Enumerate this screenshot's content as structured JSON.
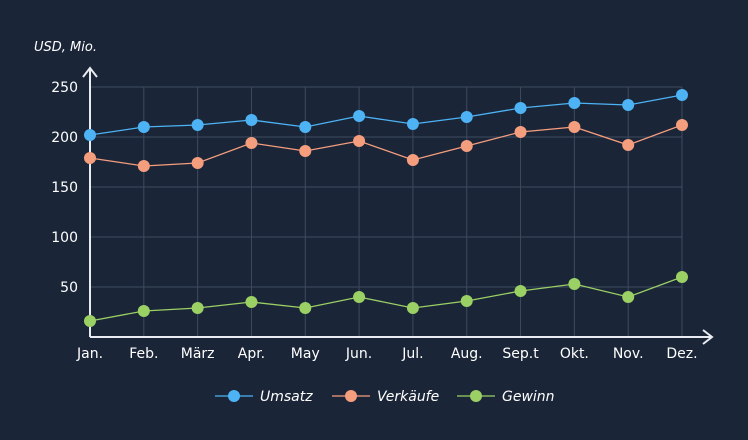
{
  "chart_data": {
    "type": "line",
    "title": "",
    "ylabel": "USD, Mio.",
    "xlabel": "",
    "categories": [
      "Jan.",
      "Feb.",
      "März",
      "Apr.",
      "May",
      "Jun.",
      "Jul.",
      "Aug.",
      "Sep.t",
      "Okt.",
      "Nov.",
      "Dez."
    ],
    "ylim": [
      0,
      250
    ],
    "yticks": [
      50,
      100,
      150,
      200,
      250
    ],
    "grid": true,
    "legend_position": "bottom",
    "series": [
      {
        "name": "Umsatz",
        "color": "#4db3f5",
        "values": [
          202,
          210,
          212,
          217,
          210,
          221,
          213,
          220,
          229,
          234,
          232,
          242
        ]
      },
      {
        "name": "Verkäufe",
        "color": "#f59e7e",
        "values": [
          179,
          171,
          174,
          194,
          186,
          196,
          177,
          191,
          205,
          210,
          192,
          212
        ]
      },
      {
        "name": "Gewinn",
        "color": "#9bd065",
        "values": [
          16,
          26,
          29,
          35,
          29,
          40,
          29,
          36,
          46,
          53,
          40,
          60
        ]
      }
    ]
  }
}
